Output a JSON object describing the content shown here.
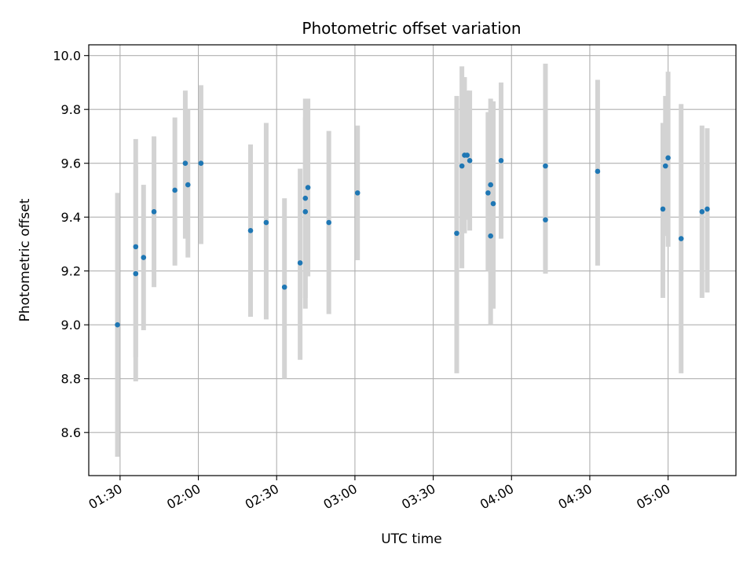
{
  "chart_data": {
    "type": "scatter",
    "title": "Photometric offset variation",
    "xlabel": "UTC time",
    "ylabel": "Photometric offset",
    "grid": true,
    "xlim": [
      "01:18",
      "05:26"
    ],
    "ylim": [
      8.44,
      10.04
    ],
    "xticks": [
      "01:30",
      "02:00",
      "02:30",
      "03:00",
      "03:30",
      "04:00",
      "04:30",
      "05:00"
    ],
    "yticks": [
      8.6,
      8.8,
      9.0,
      9.2,
      9.4,
      9.6,
      9.8,
      10.0
    ],
    "ytick_labels": [
      "8.6",
      "8.8",
      "9.0",
      "9.2",
      "9.4",
      "9.6",
      "9.8",
      "10.0"
    ],
    "colors": {
      "point": "#1f77b4",
      "errorbar": "#d3d3d3",
      "grid": "#b0b0b0"
    },
    "series": [
      {
        "points": [
          {
            "x": "01:29",
            "y": 9.0,
            "ylow": 8.51,
            "yhigh": 9.49
          },
          {
            "x": "01:36",
            "y": 9.29,
            "ylow": 8.88,
            "yhigh": 9.69
          },
          {
            "x": "01:36",
            "y": 9.19,
            "ylow": 8.79,
            "yhigh": 9.59
          },
          {
            "x": "01:39",
            "y": 9.25,
            "ylow": 8.98,
            "yhigh": 9.52
          },
          {
            "x": "01:43",
            "y": 9.42,
            "ylow": 9.14,
            "yhigh": 9.7
          },
          {
            "x": "01:51",
            "y": 9.5,
            "ylow": 9.22,
            "yhigh": 9.77
          },
          {
            "x": "01:55",
            "y": 9.6,
            "ylow": 9.32,
            "yhigh": 9.87
          },
          {
            "x": "01:56",
            "y": 9.52,
            "ylow": 9.25,
            "yhigh": 9.8
          },
          {
            "x": "02:01",
            "y": 9.6,
            "ylow": 9.3,
            "yhigh": 9.89
          },
          {
            "x": "02:20",
            "y": 9.35,
            "ylow": 9.03,
            "yhigh": 9.67
          },
          {
            "x": "02:26",
            "y": 9.38,
            "ylow": 9.02,
            "yhigh": 9.75
          },
          {
            "x": "02:33",
            "y": 9.14,
            "ylow": 8.8,
            "yhigh": 9.47
          },
          {
            "x": "02:39",
            "y": 9.23,
            "ylow": 8.87,
            "yhigh": 9.58
          },
          {
            "x": "02:41",
            "y": 9.42,
            "ylow": 9.06,
            "yhigh": 9.77
          },
          {
            "x": "02:41",
            "y": 9.47,
            "ylow": 9.1,
            "yhigh": 9.84
          },
          {
            "x": "02:42",
            "y": 9.51,
            "ylow": 9.18,
            "yhigh": 9.84
          },
          {
            "x": "02:50",
            "y": 9.38,
            "ylow": 9.04,
            "yhigh": 9.72
          },
          {
            "x": "03:01",
            "y": 9.49,
            "ylow": 9.24,
            "yhigh": 9.74
          },
          {
            "x": "03:39",
            "y": 9.34,
            "ylow": 8.82,
            "yhigh": 9.85
          },
          {
            "x": "03:41",
            "y": 9.59,
            "ylow": 9.21,
            "yhigh": 9.96
          },
          {
            "x": "03:42",
            "y": 9.63,
            "ylow": 9.34,
            "yhigh": 9.92
          },
          {
            "x": "03:43",
            "y": 9.63,
            "ylow": 9.39,
            "yhigh": 9.87
          },
          {
            "x": "03:44",
            "y": 9.61,
            "ylow": 9.35,
            "yhigh": 9.87
          },
          {
            "x": "03:51",
            "y": 9.49,
            "ylow": 9.2,
            "yhigh": 9.79
          },
          {
            "x": "03:52",
            "y": 9.52,
            "ylow": 9.19,
            "yhigh": 9.84
          },
          {
            "x": "03:52",
            "y": 9.33,
            "ylow": 9.0,
            "yhigh": 9.66
          },
          {
            "x": "03:53",
            "y": 9.45,
            "ylow": 9.06,
            "yhigh": 9.83
          },
          {
            "x": "03:56",
            "y": 9.61,
            "ylow": 9.32,
            "yhigh": 9.9
          },
          {
            "x": "04:13",
            "y": 9.39,
            "ylow": 9.19,
            "yhigh": 9.59
          },
          {
            "x": "04:13",
            "y": 9.59,
            "ylow": 9.21,
            "yhigh": 9.97
          },
          {
            "x": "04:33",
            "y": 9.57,
            "ylow": 9.22,
            "yhigh": 9.91
          },
          {
            "x": "04:58",
            "y": 9.43,
            "ylow": 9.1,
            "yhigh": 9.75
          },
          {
            "x": "04:59",
            "y": 9.59,
            "ylow": 9.33,
            "yhigh": 9.85
          },
          {
            "x": "05:00",
            "y": 9.62,
            "ylow": 9.29,
            "yhigh": 9.94
          },
          {
            "x": "05:05",
            "y": 9.32,
            "ylow": 8.82,
            "yhigh": 9.82
          },
          {
            "x": "05:13",
            "y": 9.42,
            "ylow": 9.1,
            "yhigh": 9.74
          },
          {
            "x": "05:15",
            "y": 9.43,
            "ylow": 9.12,
            "yhigh": 9.73
          }
        ]
      }
    ]
  }
}
